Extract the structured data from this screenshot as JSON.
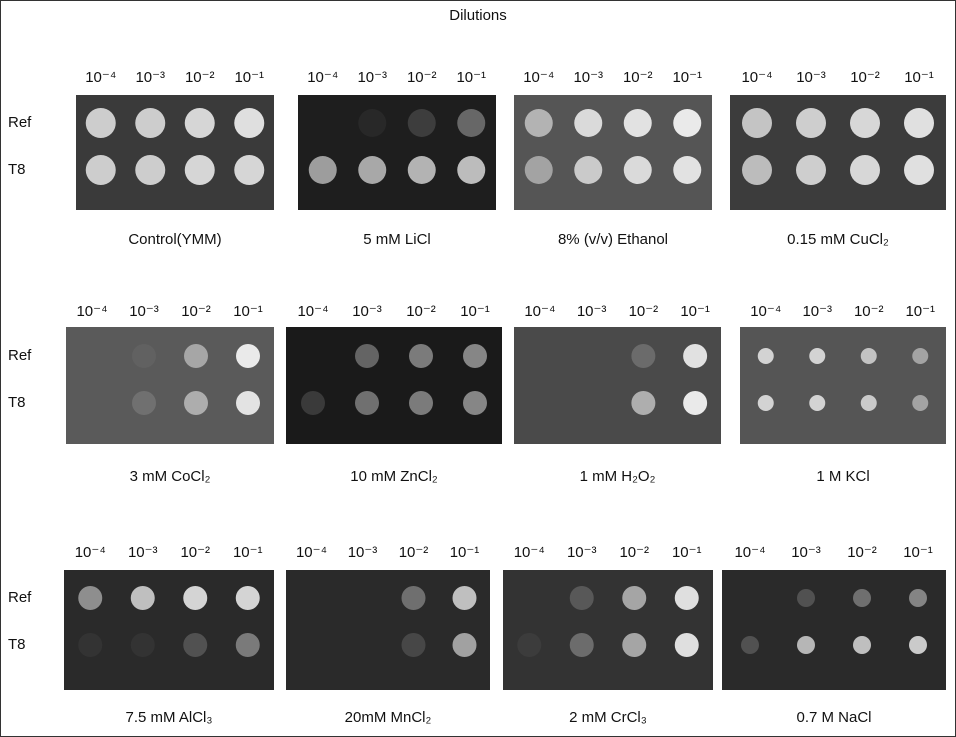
{
  "title": "Dilutions",
  "groups": [
    {
      "strains": [
        "Ref",
        "T8"
      ],
      "panels": [
        {
          "dilutions": [
            "10⁻⁴",
            "10⁻³",
            "10⁻²",
            "10⁻¹"
          ],
          "caption": "Control(YMM)"
        },
        {
          "dilutions": [
            "10⁻⁴",
            "10⁻³",
            "10⁻²",
            "10⁻¹"
          ],
          "caption": "5 mM LiCl"
        },
        {
          "dilutions": [
            "10⁻⁴",
            "10⁻³",
            "10⁻²",
            "10⁻¹"
          ],
          "caption": "8% (v/v) Ethanol"
        },
        {
          "dilutions": [
            "10⁻⁴",
            "10⁻³",
            "10⁻²",
            "10⁻¹"
          ],
          "caption": "0.15 mM CuCl₂"
        }
      ]
    },
    {
      "strains": [
        "Ref",
        "T8"
      ],
      "panels": [
        {
          "dilutions": [
            "10⁻⁴",
            "10⁻³",
            "10⁻²",
            "10⁻¹"
          ],
          "caption": "3 mM CoCl₂"
        },
        {
          "dilutions": [
            "10⁻⁴",
            "10⁻³",
            "10⁻²",
            "10⁻¹"
          ],
          "caption": "10 mM ZnCl₂"
        },
        {
          "dilutions": [
            "10⁻⁴",
            "10⁻³",
            "10⁻²",
            "10⁻¹"
          ],
          "caption": "1 mM H₂O₂"
        },
        {
          "dilutions": [
            "10⁻⁴",
            "10⁻³",
            "10⁻²",
            "10⁻¹"
          ],
          "caption": "1 M KCl"
        }
      ]
    },
    {
      "strains": [
        "Ref",
        "T8"
      ],
      "panels": [
        {
          "dilutions": [
            "10⁻⁴",
            "10⁻³",
            "10⁻²",
            "10⁻¹"
          ],
          "caption": "7.5 mM AlCl₃"
        },
        {
          "dilutions": [
            "10⁻⁴",
            "10⁻³",
            "10⁻²",
            "10⁻¹"
          ],
          "caption": "20mM MnCl₂"
        },
        {
          "dilutions": [
            "10⁻⁴",
            "10⁻³",
            "10⁻²",
            "10⁻¹"
          ],
          "caption": "2 mM CrCl₃"
        },
        {
          "dilutions": [
            "10⁻⁴",
            "10⁻³",
            "10⁻²",
            "10⁻¹"
          ],
          "caption": "0.7 M NaCl"
        }
      ]
    }
  ]
}
